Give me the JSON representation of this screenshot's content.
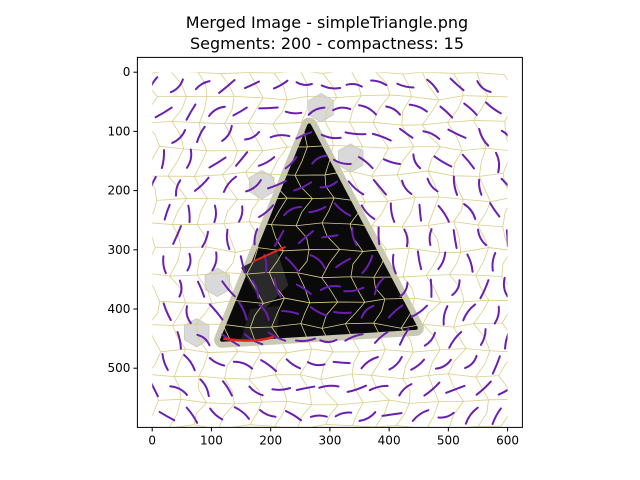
{
  "chart_data": {
    "type": "image",
    "title_line1": "Merged Image - simpleTriangle.png",
    "title_line2": "Segments: 200 - compactness: 15",
    "xlim": [
      -25,
      625
    ],
    "ylim": [
      600,
      -25
    ],
    "x_ticks": [
      0,
      100,
      200,
      300,
      400,
      500,
      600
    ],
    "y_ticks": [
      0,
      100,
      200,
      300,
      400,
      500
    ],
    "image_extent": {
      "x": [
        0,
        600
      ],
      "y": [
        0,
        600
      ]
    },
    "triangle": {
      "apex": [
        265,
        90
      ],
      "base_left": [
        118,
        452
      ],
      "base_right": [
        445,
        432
      ]
    },
    "highlighted_segments": [
      {
        "shape": "hexagon",
        "center": [
          285,
          60
        ]
      },
      {
        "shape": "hexagon",
        "center": [
          335,
          145
        ]
      },
      {
        "shape": "hexagon",
        "center": [
          185,
          190
        ]
      },
      {
        "shape": "hexagon",
        "center": [
          110,
          355
        ]
      },
      {
        "shape": "hexagon",
        "center": [
          75,
          440
        ]
      }
    ],
    "grid_rows": 15,
    "grid_cols": 15,
    "colors": {
      "background": "#ffffff",
      "triangle_fill": "#0a0a0a",
      "halo": "#c8c8b4",
      "boundary": "#d9cf8a",
      "stroke": "#6a1fb0",
      "highlight": "#d9d9d9",
      "red_line": "#e0261e"
    }
  }
}
